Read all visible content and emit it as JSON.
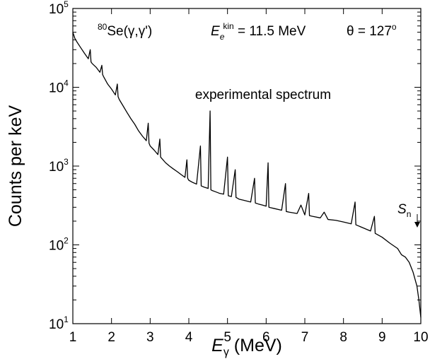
{
  "chart_data": {
    "type": "line",
    "ylabel": "Counts per keV",
    "xlabel": {
      "symbol": "E",
      "sub": "γ",
      "text": " (MeV)"
    },
    "annotations": {
      "target_mass": "80",
      "reaction": "Se(γ,γ')",
      "energy_symbol": "E",
      "energy_sub": "e",
      "energy_sup": "kin",
      "energy_text": " = 11.5 MeV",
      "angle_text": "θ = 127",
      "angle_sup": "o",
      "spectrum_label": "experimental spectrum",
      "threshold_symbol": "S",
      "threshold_sub": "n"
    },
    "log_y": true,
    "xlim": [
      1,
      10
    ],
    "xticks": [
      1,
      2,
      3,
      4,
      5,
      6,
      7,
      8,
      9,
      10
    ],
    "ylim": [
      10,
      100000
    ],
    "yticks": [
      {
        "value": 10,
        "label": "10",
        "exponent": "1"
      },
      {
        "value": 100,
        "label": "10",
        "exponent": "2"
      },
      {
        "value": 1000,
        "label": "10",
        "exponent": "3"
      },
      {
        "value": 10000,
        "label": "10",
        "exponent": "4"
      },
      {
        "value": 100000,
        "label": "10",
        "exponent": "5"
      }
    ],
    "color": "#000000",
    "x": [
      1.0,
      1.05,
      1.1,
      1.2,
      1.3,
      1.4,
      1.45,
      1.47,
      1.5,
      1.6,
      1.7,
      1.75,
      1.77,
      1.8,
      1.9,
      2.0,
      2.1,
      2.15,
      2.17,
      2.2,
      2.3,
      2.4,
      2.5,
      2.6,
      2.7,
      2.8,
      2.9,
      2.95,
      2.97,
      3.0,
      3.1,
      3.2,
      3.25,
      3.27,
      3.3,
      3.4,
      3.5,
      3.6,
      3.7,
      3.8,
      3.9,
      3.95,
      3.97,
      4.0,
      4.1,
      4.2,
      4.3,
      4.32,
      4.4,
      4.5,
      4.55,
      4.57,
      4.6,
      4.7,
      4.8,
      4.9,
      5.0,
      5.02,
      5.1,
      5.2,
      5.22,
      5.3,
      5.4,
      5.5,
      5.6,
      5.7,
      5.72,
      5.8,
      5.9,
      6.0,
      6.05,
      6.07,
      6.2,
      6.4,
      6.5,
      6.52,
      6.6,
      6.8,
      6.9,
      7.0,
      7.1,
      7.12,
      7.2,
      7.4,
      7.5,
      7.6,
      7.8,
      8.0,
      8.2,
      8.3,
      8.32,
      8.5,
      8.7,
      8.8,
      8.82,
      9.0,
      9.2,
      9.4,
      9.5,
      9.6,
      9.7,
      9.8,
      9.9,
      9.95,
      10.0
    ],
    "values": [
      50000,
      42000,
      38000,
      32000,
      27000,
      23000,
      30000,
      21000,
      20000,
      18000,
      15500,
      19000,
      14500,
      13500,
      11000,
      9500,
      8000,
      11000,
      7600,
      7000,
      5800,
      4800,
      4000,
      3400,
      2800,
      2400,
      2100,
      3500,
      1950,
      1800,
      1600,
      1400,
      2200,
      1300,
      1250,
      1100,
      1000,
      920,
      850,
      780,
      720,
      1200,
      700,
      660,
      620,
      590,
      1800,
      560,
      540,
      520,
      5000,
      500,
      490,
      470,
      450,
      440,
      1300,
      420,
      410,
      900,
      400,
      380,
      370,
      360,
      350,
      700,
      340,
      330,
      320,
      310,
      1100,
      300,
      290,
      275,
      600,
      265,
      260,
      250,
      320,
      240,
      450,
      235,
      230,
      220,
      260,
      210,
      205,
      195,
      185,
      350,
      180,
      165,
      150,
      230,
      140,
      125,
      105,
      90,
      75,
      70,
      60,
      45,
      30,
      20,
      12
    ]
  }
}
